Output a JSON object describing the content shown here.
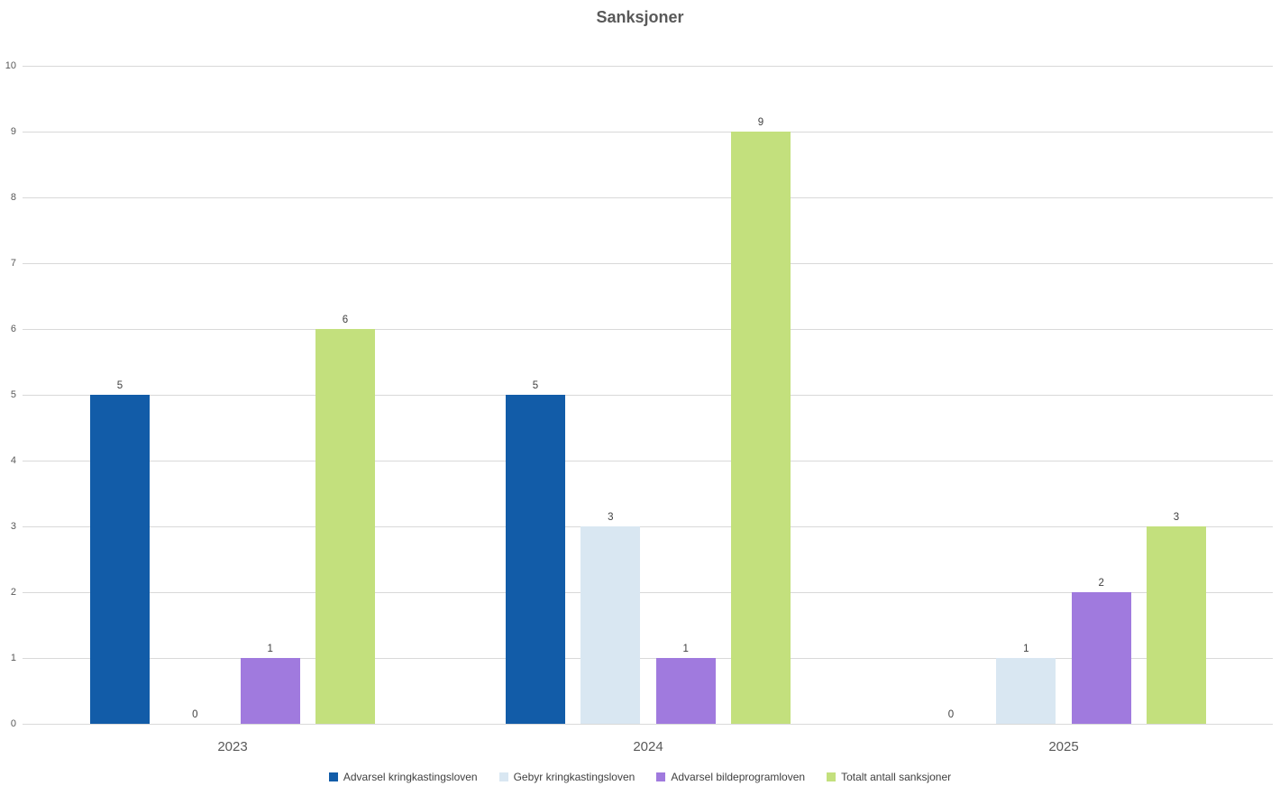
{
  "chart_data": {
    "type": "bar",
    "title": "Sanksjoner",
    "categories": [
      "2023",
      "2024",
      "2025"
    ],
    "series": [
      {
        "name": "Advarsel kringkastingsloven",
        "color": "#125CA8",
        "values": [
          5,
          5,
          0
        ]
      },
      {
        "name": "Gebyr kringkastingsloven",
        "color": "#D9E7F2",
        "values": [
          0,
          3,
          1
        ]
      },
      {
        "name": "Advarsel bildeprogramloven",
        "color": "#A07ADE",
        "values": [
          1,
          1,
          2
        ]
      },
      {
        "name": "Totalt antall sanksjoner",
        "color": "#C3E07D",
        "values": [
          6,
          9,
          3
        ]
      }
    ],
    "xlabel": "",
    "ylabel": "",
    "ylim": [
      0,
      10
    ],
    "yticks": [
      0,
      1,
      2,
      3,
      4,
      5,
      6,
      7,
      8,
      9,
      10
    ],
    "grid": true,
    "data_labels": true,
    "legend_position": "bottom",
    "colors": {
      "grid": "#D9D9D9",
      "axis_text": "#595959",
      "data_label_text": "#404040",
      "title_text": "#595959",
      "background": "#FFFFFF"
    }
  }
}
